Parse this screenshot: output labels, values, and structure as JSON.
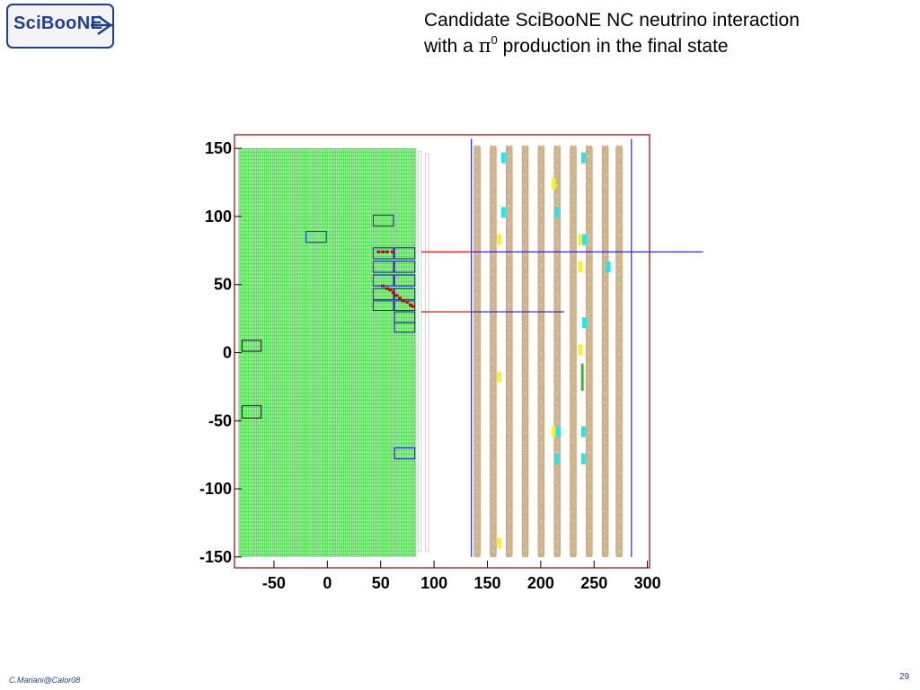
{
  "logo": {
    "text": "SciBooNE"
  },
  "title": {
    "line1": "Candidate SciBooNE NC neutrino interaction",
    "line2_pre": "with a ",
    "line2_symbol": "π",
    "line2_sup": "0",
    "line2_post": " production in the final state"
  },
  "footer": {
    "author": "C.Mariani@Calor08",
    "page": "29"
  },
  "colors": {
    "scibar_fill": "#9df09d",
    "scibar_grid": "#2fd12f",
    "frame": "#8b1a1a",
    "track_red": "#cc0000",
    "track_blue": "#1a1acc",
    "mrd_plane": "#d2b48c",
    "mrd_border": "#2a2acc",
    "hit_cyan": "#22e5f0",
    "hit_yellow": "#f5f526",
    "hit_green": "#33bb33"
  },
  "chart_data": {
    "type": "event-display",
    "x_ticks": [
      "-50",
      "0",
      "50",
      "100",
      "150",
      "200",
      "250",
      "300"
    ],
    "y_ticks": [
      "150",
      "100",
      "50",
      "0",
      "-50",
      "-100",
      "-150"
    ],
    "xlim": [
      -87,
      302
    ],
    "ylim": [
      -158,
      160
    ],
    "scibar_region": {
      "x": [
        -83,
        83
      ],
      "y": [
        -150,
        150
      ]
    },
    "mrd_planes_x": [
      140,
      155,
      170,
      185,
      200,
      215,
      230,
      245,
      260,
      273
    ],
    "mrd_iron_x": [
      135,
      285
    ],
    "ec_blocks": [
      {
        "x": [
          -80,
          -62
        ],
        "y": [
          1,
          9
        ],
        "color": "black"
      },
      {
        "x": [
          -80,
          -62
        ],
        "y": [
          -48,
          -39
        ],
        "color": "black"
      },
      {
        "x": [
          -20,
          -1
        ],
        "y": [
          81,
          89
        ],
        "color": "blue"
      },
      {
        "x": [
          43,
          62
        ],
        "y": [
          93,
          101
        ],
        "color": "blue"
      },
      {
        "x": [
          43,
          62
        ],
        "y": [
          69,
          77
        ],
        "color": "blue"
      },
      {
        "x": [
          63,
          82
        ],
        "y": [
          69,
          77
        ],
        "color": "blue"
      },
      {
        "x": [
          43,
          62
        ],
        "y": [
          59,
          67
        ],
        "color": "blue"
      },
      {
        "x": [
          63,
          82
        ],
        "y": [
          59,
          67
        ],
        "color": "blue"
      },
      {
        "x": [
          43,
          62
        ],
        "y": [
          49,
          57
        ],
        "color": "blue"
      },
      {
        "x": [
          63,
          82
        ],
        "y": [
          49,
          57
        ],
        "color": "blue"
      },
      {
        "x": [
          43,
          62
        ],
        "y": [
          39,
          47
        ],
        "color": "blue"
      },
      {
        "x": [
          63,
          82
        ],
        "y": [
          39,
          47
        ],
        "color": "blue"
      },
      {
        "x": [
          43,
          62
        ],
        "y": [
          31,
          38
        ],
        "color": "blue"
      },
      {
        "x": [
          63,
          82
        ],
        "y": [
          31,
          38
        ],
        "color": "blue"
      },
      {
        "x": [
          63,
          82
        ],
        "y": [
          22,
          30
        ],
        "color": "blue"
      },
      {
        "x": [
          63,
          82
        ],
        "y": [
          15,
          22
        ],
        "color": "blue"
      },
      {
        "x": [
          63,
          82
        ],
        "y": [
          -78,
          -70
        ],
        "color": "blue"
      }
    ],
    "hit_points": [
      {
        "x": 48,
        "y": 74
      },
      {
        "x": 52,
        "y": 74
      },
      {
        "x": 56,
        "y": 74
      },
      {
        "x": 61,
        "y": 74
      },
      {
        "x": 52,
        "y": 49
      },
      {
        "x": 56,
        "y": 47
      },
      {
        "x": 59,
        "y": 46
      },
      {
        "x": 62,
        "y": 44
      },
      {
        "x": 65,
        "y": 42
      },
      {
        "x": 68,
        "y": 40
      },
      {
        "x": 71,
        "y": 38
      },
      {
        "x": 75,
        "y": 37
      },
      {
        "x": 78,
        "y": 35
      },
      {
        "x": 80,
        "y": 34
      }
    ],
    "tracks": [
      {
        "color": "red",
        "x": [
          88,
          135
        ],
        "y": [
          74,
          74
        ]
      },
      {
        "color": "blue",
        "x": [
          135,
          352
        ],
        "y": [
          74,
          74
        ]
      },
      {
        "color": "red",
        "x": [
          88,
          135
        ],
        "y": [
          30,
          30
        ]
      },
      {
        "color": "blue",
        "x": [
          135,
          222
        ],
        "y": [
          30,
          30
        ]
      }
    ],
    "mrd_hits": [
      {
        "x": 165,
        "y": 143,
        "color": "cyan"
      },
      {
        "x": 240,
        "y": 143,
        "color": "cyan"
      },
      {
        "x": 212,
        "y": 124,
        "color": "yellow"
      },
      {
        "x": 165,
        "y": 103,
        "color": "cyan"
      },
      {
        "x": 215,
        "y": 103,
        "color": "cyan"
      },
      {
        "x": 161,
        "y": 83,
        "color": "yellow"
      },
      {
        "x": 237,
        "y": 83,
        "color": "yellow"
      },
      {
        "x": 241,
        "y": 83,
        "color": "cyan"
      },
      {
        "x": 237,
        "y": 63,
        "color": "yellow"
      },
      {
        "x": 263,
        "y": 63,
        "color": "cyan"
      },
      {
        "x": 241,
        "y": 22,
        "color": "cyan"
      },
      {
        "x": 237,
        "y": 2,
        "color": "yellow"
      },
      {
        "x": 161,
        "y": -18,
        "color": "yellow"
      },
      {
        "x": 212,
        "y": -58,
        "color": "yellow"
      },
      {
        "x": 216,
        "y": -58,
        "color": "cyan"
      },
      {
        "x": 240,
        "y": -58,
        "color": "cyan"
      },
      {
        "x": 215,
        "y": -78,
        "color": "cyan"
      },
      {
        "x": 240,
        "y": -78,
        "color": "cyan"
      },
      {
        "x": 161,
        "y": -140,
        "color": "yellow"
      }
    ],
    "mrd_segments": [
      {
        "x": 239,
        "y": [
          -28,
          -8
        ],
        "color": "green"
      }
    ]
  }
}
